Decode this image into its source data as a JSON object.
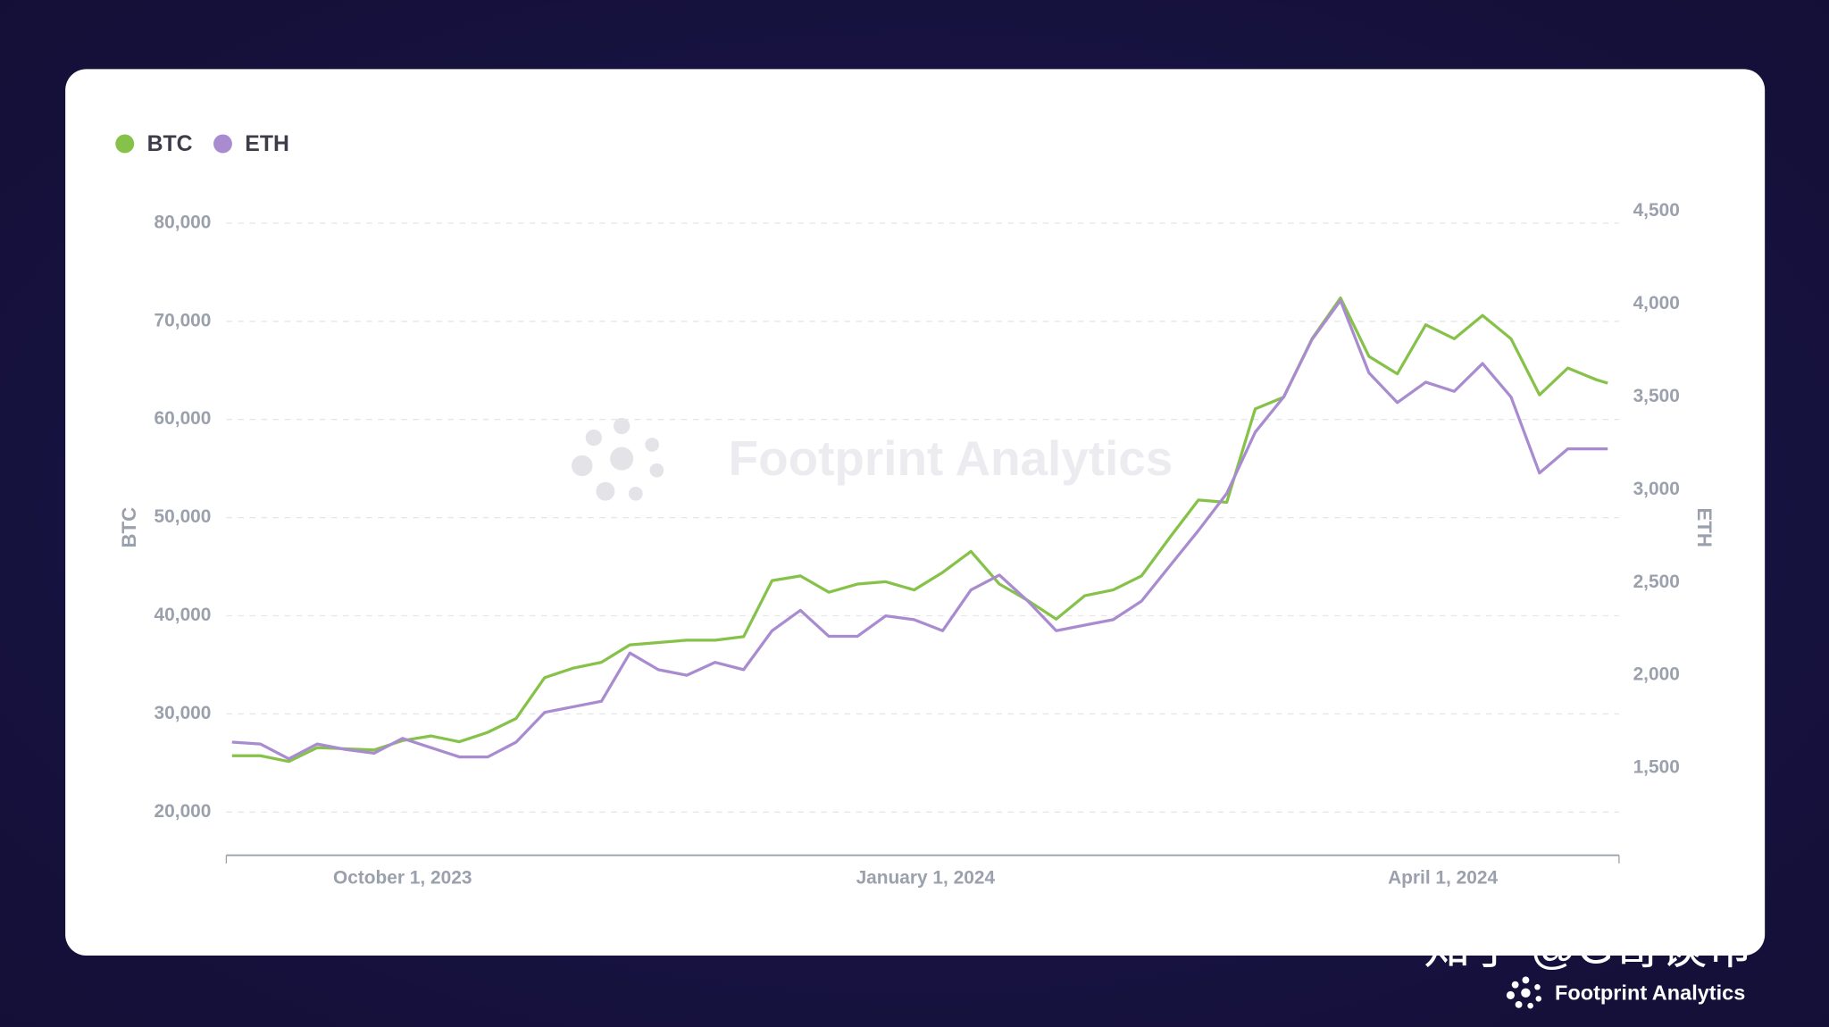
{
  "chart_data": {
    "type": "line",
    "x": [
      "2023-09-01",
      "2023-09-06",
      "2023-09-11",
      "2023-09-16",
      "2023-09-21",
      "2023-09-26",
      "2023-10-01",
      "2023-10-06",
      "2023-10-11",
      "2023-10-16",
      "2023-10-21",
      "2023-10-26",
      "2023-10-31",
      "2023-11-05",
      "2023-11-10",
      "2023-11-15",
      "2023-11-20",
      "2023-11-25",
      "2023-11-30",
      "2023-12-05",
      "2023-12-10",
      "2023-12-15",
      "2023-12-20",
      "2023-12-25",
      "2023-12-30",
      "2024-01-04",
      "2024-01-09",
      "2024-01-14",
      "2024-01-19",
      "2024-01-24",
      "2024-01-29",
      "2024-02-03",
      "2024-02-08",
      "2024-02-13",
      "2024-02-18",
      "2024-02-23",
      "2024-02-28",
      "2024-03-04",
      "2024-03-09",
      "2024-03-14",
      "2024-03-19",
      "2024-03-24",
      "2024-03-29",
      "2024-04-03",
      "2024-04-08",
      "2024-04-13",
      "2024-04-18",
      "2024-04-23",
      "2024-04-28",
      "2024-04-30"
    ],
    "series": [
      {
        "name": "BTC",
        "color": "#86c24a",
        "values": [
          25740,
          25740,
          25150,
          26570,
          26450,
          26330,
          27280,
          27760,
          27160,
          28120,
          29540,
          33700,
          34660,
          35260,
          37040,
          37280,
          37520,
          37520,
          37870,
          43590,
          44060,
          42400,
          43230,
          43470,
          42640,
          44420,
          46560,
          43230,
          41560,
          39660,
          42040,
          42640,
          44060,
          47990,
          51800,
          51560,
          61080,
          62270,
          68220,
          72380,
          66430,
          64650,
          69650,
          68220,
          70600,
          68220,
          62510,
          65240,
          64050,
          63690
        ]
      },
      {
        "name": "ETH",
        "color": "#a98bd0",
        "axis": "y2",
        "values": [
          1640,
          1630,
          1550,
          1630,
          1600,
          1580,
          1660,
          1610,
          1560,
          1560,
          1640,
          1800,
          1830,
          1860,
          2120,
          2030,
          2000,
          2070,
          2030,
          2240,
          2350,
          2210,
          2210,
          2320,
          2300,
          2240,
          2460,
          2540,
          2400,
          2240,
          2270,
          2300,
          2400,
          2590,
          2780,
          2980,
          3310,
          3500,
          3810,
          4020,
          3630,
          3470,
          3580,
          3530,
          3680,
          3500,
          3090,
          3220,
          3220,
          3220
        ]
      }
    ],
    "xlim": [
      "2023-08-31",
      "2024-05-02"
    ],
    "xticks": [
      {
        "value": "2023-10-01",
        "label": "October 1, 2023"
      },
      {
        "value": "2024-01-01",
        "label": "January 1, 2024"
      },
      {
        "value": "2024-04-01",
        "label": "April 1, 2024"
      }
    ],
    "ylim": [
      15600,
      81200
    ],
    "yticks": [
      {
        "value": 20000,
        "label": "20,000"
      },
      {
        "value": 30000,
        "label": "30,000"
      },
      {
        "value": 40000,
        "label": "40,000"
      },
      {
        "value": 50000,
        "label": "50,000"
      },
      {
        "value": 60000,
        "label": "60,000"
      },
      {
        "value": 70000,
        "label": "70,000"
      },
      {
        "value": 80000,
        "label": "80,000"
      }
    ],
    "y2lim": [
      1030,
      4500
    ],
    "y2ticks": [
      {
        "value": 1500,
        "label": "1,500"
      },
      {
        "value": 2000,
        "label": "2,000"
      },
      {
        "value": 2500,
        "label": "2,500"
      },
      {
        "value": 3000,
        "label": "3,000"
      },
      {
        "value": 3500,
        "label": "3,500"
      },
      {
        "value": 4000,
        "label": "4,000"
      },
      {
        "value": 4500,
        "label": "4,500"
      }
    ],
    "ylabel": "BTC",
    "y2label": "ETH",
    "grid": true,
    "legend": "top-left",
    "watermark": "Footprint Analytics",
    "credit": "知乎 @G哥谈币",
    "brand": "Footprint Analytics"
  }
}
